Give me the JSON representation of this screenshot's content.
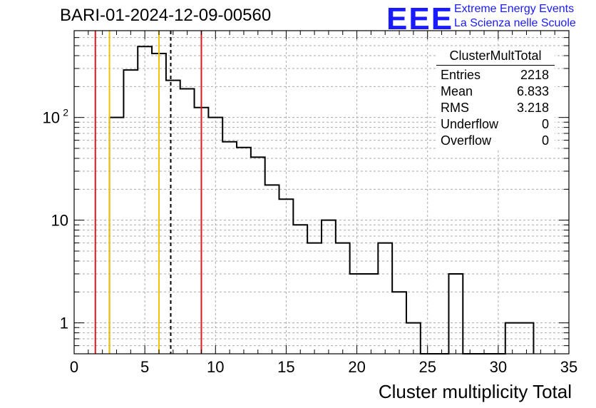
{
  "title": "BARI-01-2024-12-09-00560",
  "logo": {
    "mark": "EEE",
    "line1": "Extreme Energy Events",
    "line2": "La Scienza nelle Scuole"
  },
  "stats": {
    "name": "ClusterMultTotal",
    "rows": [
      {
        "label": "Entries",
        "value": "2218"
      },
      {
        "label": "Mean",
        "value": "6.833"
      },
      {
        "label": "RMS",
        "value": "3.218"
      },
      {
        "label": "Underflow",
        "value": "0"
      },
      {
        "label": "Overflow",
        "value": "0"
      }
    ]
  },
  "chart_data": {
    "type": "histogram",
    "xlabel": "Cluster multiplicity Total",
    "ylabel": "",
    "x_range": [
      0,
      35
    ],
    "y_range": [
      0.5,
      700
    ],
    "y_scale": "log",
    "grid": true,
    "x_ticks": [
      0,
      5,
      10,
      15,
      20,
      25,
      30,
      35
    ],
    "y_ticks": [
      {
        "value": 1,
        "label": "1"
      },
      {
        "value": 10,
        "label": "10"
      },
      {
        "value": 100,
        "label": "10",
        "sup": "2"
      }
    ],
    "bin_edges_start": 2.5,
    "bin_width": 1,
    "bin_counts": [
      100,
      290,
      490,
      420,
      230,
      190,
      125,
      100,
      58,
      51,
      41,
      22,
      16,
      9,
      6,
      10,
      6,
      3,
      3,
      6,
      2,
      1,
      0,
      0,
      3,
      0,
      0,
      0,
      1,
      1
    ],
    "vertical_lines": [
      {
        "x": 1.5,
        "color": "#e0161b",
        "style": "solid"
      },
      {
        "x": 2.5,
        "color": "#f2c200",
        "style": "solid"
      },
      {
        "x": 6.0,
        "color": "#f2c200",
        "style": "solid"
      },
      {
        "x": 6.833,
        "color": "#000000",
        "style": "dashed"
      },
      {
        "x": 9.0,
        "color": "#e0161b",
        "style": "solid"
      }
    ]
  }
}
